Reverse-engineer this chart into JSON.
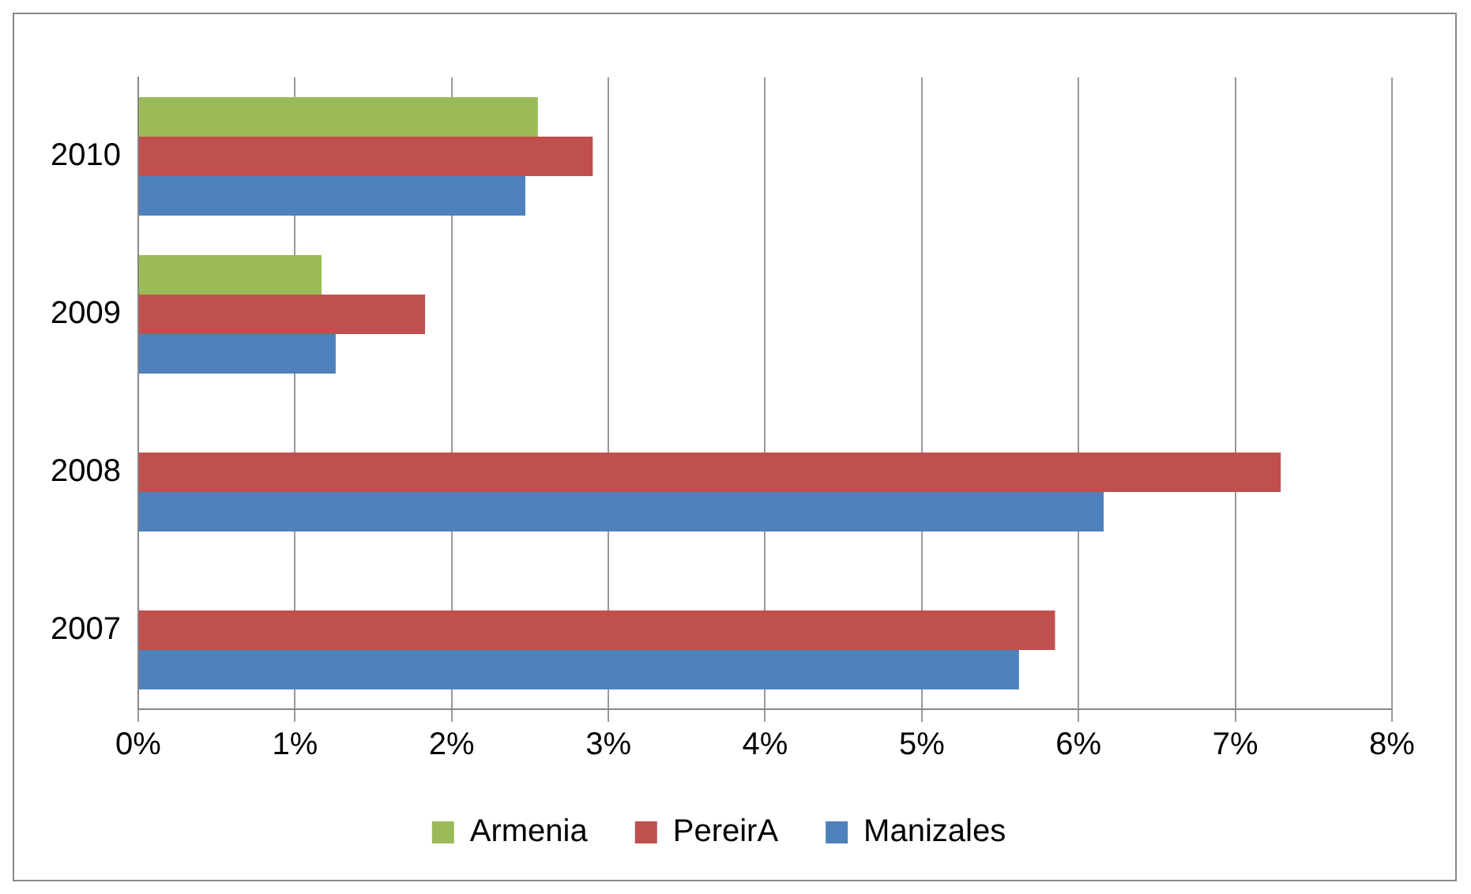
{
  "chart_data": {
    "type": "bar",
    "orientation": "horizontal",
    "categories": [
      "2010",
      "2009",
      "2008",
      "2007"
    ],
    "series": [
      {
        "name": "Armenia",
        "color": "#9bbb59",
        "values": [
          2.55,
          1.17,
          null,
          null
        ]
      },
      {
        "name": "PereirA",
        "color": "#c0504d",
        "values": [
          2.9,
          1.83,
          7.29,
          5.85
        ]
      },
      {
        "name": "Manizales",
        "color": "#4f81bd",
        "values": [
          2.47,
          1.26,
          6.16,
          5.62
        ]
      }
    ],
    "xlim": [
      0,
      8
    ],
    "xticks": [
      {
        "value": 0,
        "label": "0%"
      },
      {
        "value": 1,
        "label": "1%"
      },
      {
        "value": 2,
        "label": "2%"
      },
      {
        "value": 3,
        "label": "3%"
      },
      {
        "value": 4,
        "label": "4%"
      },
      {
        "value": 5,
        "label": "5%"
      },
      {
        "value": 6,
        "label": "6%"
      },
      {
        "value": 7,
        "label": "7%"
      },
      {
        "value": 8,
        "label": "8%"
      }
    ],
    "grid": "x",
    "legend": "bottom"
  }
}
